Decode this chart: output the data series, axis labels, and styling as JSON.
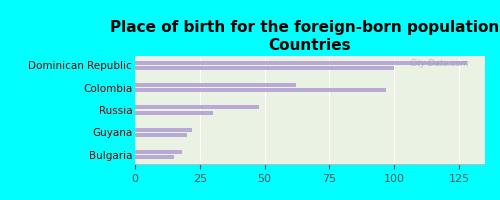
{
  "title": "Place of birth for the foreign-born population -\nCountries",
  "categories": [
    "Dominican Republic",
    "Colombia",
    "Russia",
    "Guyana",
    "Bulgaria"
  ],
  "values_top": [
    128,
    62,
    48,
    22,
    18
  ],
  "values_bottom": [
    100,
    97,
    30,
    20,
    15
  ],
  "bar_color": "#b8aad4",
  "background_color": "#00ffff",
  "plot_bg_top": "#f0f4e8",
  "plot_bg_bottom": "#e0ecda",
  "xlim": [
    0,
    135
  ],
  "xticks": [
    0,
    25,
    50,
    75,
    100,
    125
  ],
  "watermark": "City-Data.com",
  "title_fontsize": 11,
  "tick_fontsize": 8,
  "label_fontsize": 7.5
}
